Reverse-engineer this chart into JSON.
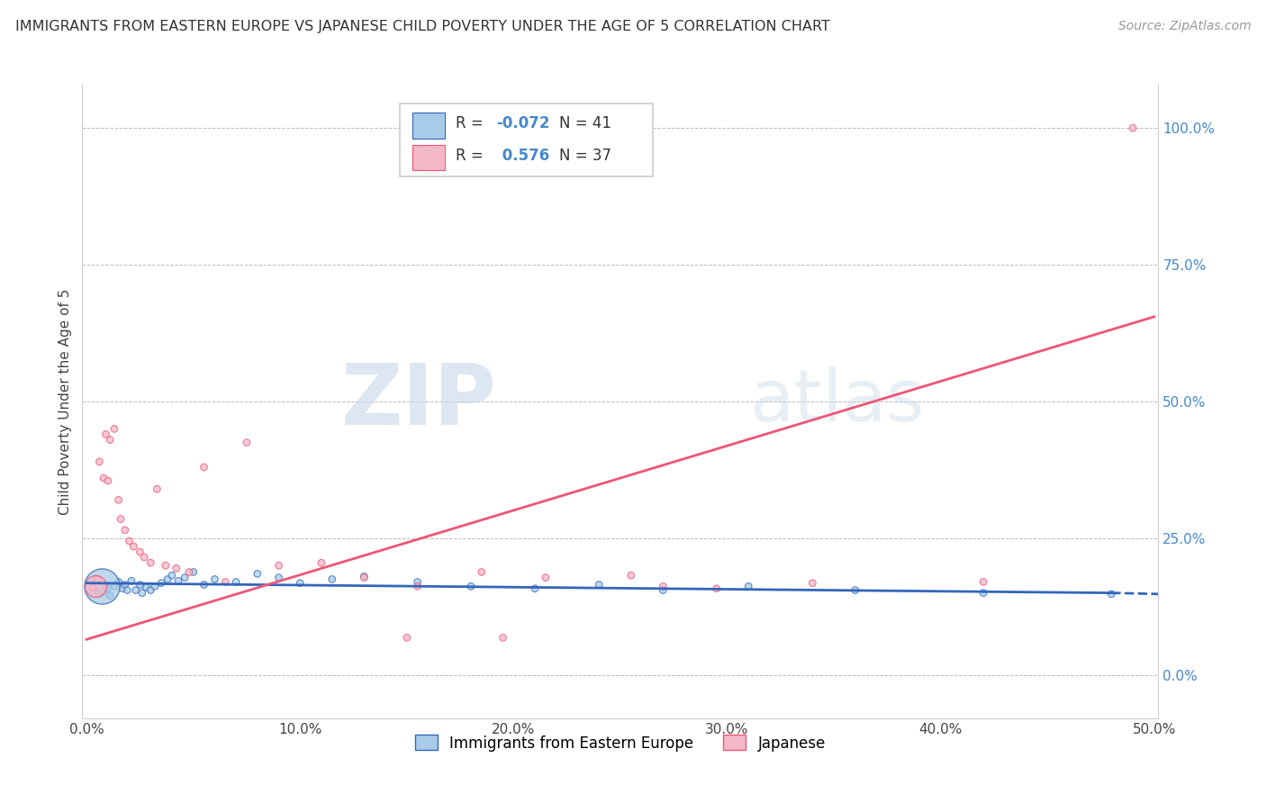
{
  "title": "IMMIGRANTS FROM EASTERN EUROPE VS JAPANESE CHILD POVERTY UNDER THE AGE OF 5 CORRELATION CHART",
  "source": "Source: ZipAtlas.com",
  "ylabel": "Child Poverty Under the Age of 5",
  "xlim": [
    -0.002,
    0.502
  ],
  "ylim": [
    -0.08,
    1.08
  ],
  "xticks": [
    0.0,
    0.1,
    0.2,
    0.3,
    0.4,
    0.5
  ],
  "xticklabels": [
    "0.0%",
    "10.0%",
    "20.0%",
    "30.0%",
    "40.0%",
    "50.0%"
  ],
  "ytick_vals": [
    0.0,
    0.25,
    0.5,
    0.75,
    1.0
  ],
  "yticklabels_right": [
    "0.0%",
    "25.0%",
    "50.0%",
    "75.0%",
    "100.0%"
  ],
  "color_blue": "#a8cce8",
  "color_pink": "#f4b8c8",
  "line_blue": "#3366bb",
  "line_pink": "#ee5577",
  "blue_r": "-0.072",
  "blue_n": "41",
  "pink_r": "0.576",
  "pink_n": "37",
  "blue_scatter_x": [
    0.004,
    0.006,
    0.008,
    0.009,
    0.01,
    0.011,
    0.013,
    0.015,
    0.017,
    0.018,
    0.019,
    0.021,
    0.023,
    0.025,
    0.026,
    0.028,
    0.03,
    0.032,
    0.035,
    0.038,
    0.04,
    0.043,
    0.046,
    0.05,
    0.055,
    0.06,
    0.07,
    0.08,
    0.09,
    0.1,
    0.115,
    0.13,
    0.155,
    0.18,
    0.21,
    0.24,
    0.27,
    0.31,
    0.36,
    0.42,
    0.48
  ],
  "blue_scatter_y": [
    0.155,
    0.148,
    0.152,
    0.16,
    0.158,
    0.145,
    0.162,
    0.17,
    0.158,
    0.165,
    0.155,
    0.172,
    0.155,
    0.165,
    0.15,
    0.16,
    0.155,
    0.162,
    0.168,
    0.175,
    0.182,
    0.172,
    0.178,
    0.188,
    0.165,
    0.175,
    0.17,
    0.185,
    0.178,
    0.168,
    0.175,
    0.18,
    0.17,
    0.162,
    0.158,
    0.165,
    0.155,
    0.162,
    0.155,
    0.15,
    0.148
  ],
  "blue_scatter_size": [
    30,
    30,
    30,
    30,
    30,
    30,
    30,
    30,
    30,
    30,
    30,
    30,
    30,
    30,
    30,
    30,
    30,
    30,
    30,
    30,
    30,
    30,
    30,
    30,
    30,
    30,
    30,
    30,
    30,
    30,
    30,
    30,
    30,
    30,
    30,
    30,
    30,
    30,
    30,
    30,
    30
  ],
  "blue_big_x": [
    0.007
  ],
  "blue_big_y": [
    0.162
  ],
  "blue_big_size": [
    800
  ],
  "pink_scatter_x": [
    0.003,
    0.005,
    0.006,
    0.008,
    0.009,
    0.01,
    0.011,
    0.013,
    0.015,
    0.016,
    0.018,
    0.02,
    0.022,
    0.025,
    0.027,
    0.03,
    0.033,
    0.037,
    0.042,
    0.048,
    0.055,
    0.065,
    0.075,
    0.09,
    0.11,
    0.13,
    0.155,
    0.185,
    0.215,
    0.255,
    0.295,
    0.195,
    0.34,
    0.27,
    0.15,
    0.42,
    0.49
  ],
  "pink_scatter_y": [
    0.16,
    0.175,
    0.39,
    0.36,
    0.44,
    0.355,
    0.43,
    0.45,
    0.32,
    0.285,
    0.265,
    0.245,
    0.235,
    0.225,
    0.215,
    0.205,
    0.34,
    0.2,
    0.195,
    0.188,
    0.38,
    0.17,
    0.425,
    0.2,
    0.205,
    0.178,
    0.162,
    0.188,
    0.178,
    0.182,
    0.158,
    0.068,
    0.168,
    0.162,
    0.068,
    0.17,
    1.0
  ],
  "pink_scatter_size": [
    30,
    30,
    30,
    30,
    30,
    30,
    30,
    30,
    30,
    30,
    30,
    30,
    30,
    30,
    30,
    30,
    30,
    30,
    30,
    30,
    30,
    30,
    30,
    30,
    30,
    30,
    30,
    30,
    30,
    30,
    30,
    30,
    30,
    30,
    30,
    30,
    30
  ],
  "pink_big_x": [
    0.004
  ],
  "pink_big_y": [
    0.162
  ],
  "pink_big_size": [
    300
  ]
}
